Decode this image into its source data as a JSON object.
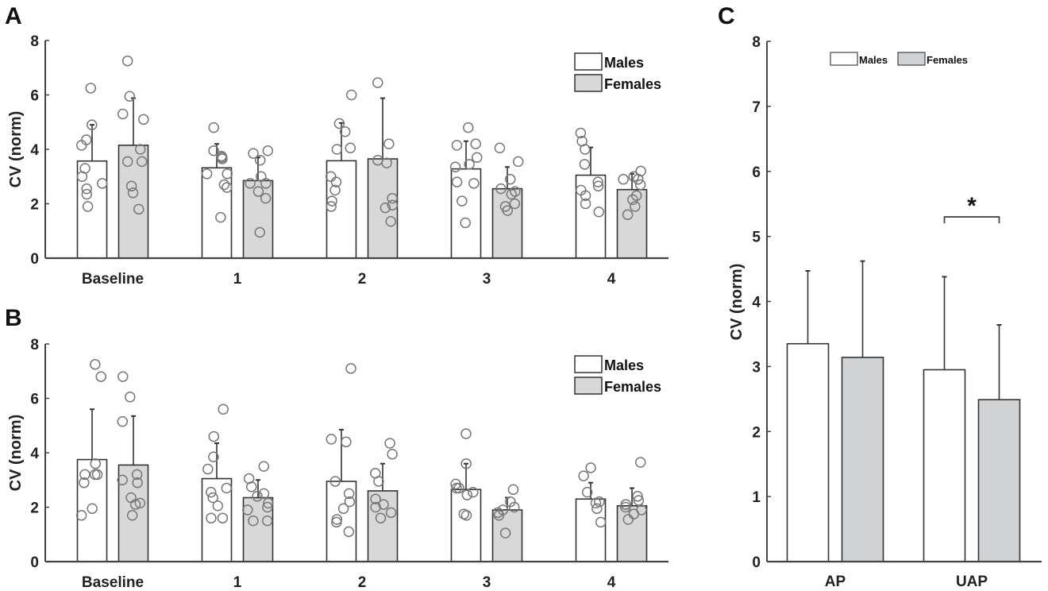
{
  "figure": {
    "colors": {
      "males": "#ffffff",
      "females": "#d8d8d8",
      "females_c": "#d0d3d6",
      "stroke": "#333333",
      "points": "#777777"
    }
  },
  "chart_data": [
    {
      "id": "A",
      "panel_label": "A",
      "type": "bar",
      "title": "",
      "xlabel": "",
      "ylabel": "CV (norm)",
      "ylim": [
        0,
        8
      ],
      "yticks": [
        0,
        2,
        4,
        6,
        8
      ],
      "grid": false,
      "legend": {
        "position": "top-right",
        "entries": [
          "Males",
          "Females"
        ]
      },
      "categories": [
        "Baseline",
        "1",
        "2",
        "3",
        "4"
      ],
      "series": [
        {
          "name": "Males",
          "values": [
            3.57,
            3.32,
            3.58,
            3.28,
            3.05
          ],
          "error_upper": [
            4.9,
            4.2,
            4.97,
            4.3,
            4.07
          ],
          "points": [
            [
              6.25,
              4.9,
              4.35,
              4.15,
              3.3,
              3.0,
              2.75,
              2.55,
              2.35,
              1.9
            ],
            [
              4.8,
              3.95,
              3.75,
              3.7,
              3.65,
              3.1,
              3.1,
              2.7,
              2.6,
              1.5
            ],
            [
              6.0,
              4.95,
              4.65,
              4.05,
              4.0,
              3.0,
              2.8,
              2.5,
              2.1,
              1.9
            ],
            [
              4.8,
              4.2,
              4.15,
              3.7,
              3.45,
              3.35,
              2.8,
              2.75,
              2.1,
              1.3
            ],
            [
              4.6,
              4.3,
              4.0,
              3.45,
              2.8,
              2.65,
              2.5,
              2.3,
              2.0,
              1.7
            ]
          ]
        },
        {
          "name": "Females",
          "values": [
            4.15,
            2.85,
            3.65,
            2.55,
            2.52
          ],
          "error_upper": [
            5.88,
            3.7,
            5.88,
            3.35,
            3.1
          ],
          "points": [
            [
              7.25,
              5.95,
              5.3,
              5.1,
              4.0,
              3.55,
              3.55,
              2.65,
              2.4,
              1.8
            ],
            [
              3.95,
              3.85,
              3.6,
              3.0,
              2.75,
              2.75,
              2.45,
              2.2,
              0.95
            ],
            [
              6.45,
              4.2,
              3.6,
              3.5,
              2.2,
              1.95,
              1.85,
              1.35
            ],
            [
              4.05,
              3.55,
              2.9,
              2.55,
              2.45,
              2.35,
              2.0,
              1.9,
              1.75
            ],
            [
              3.2,
              3.0,
              2.9,
              2.9,
              2.7,
              2.3,
              2.15,
              1.9,
              1.6
            ]
          ]
        }
      ]
    },
    {
      "id": "B",
      "panel_label": "B",
      "type": "bar",
      "title": "",
      "xlabel": "",
      "ylabel": "CV (norm)",
      "ylim": [
        0,
        8
      ],
      "yticks": [
        0,
        2,
        4,
        6,
        8
      ],
      "grid": false,
      "legend": {
        "position": "top-right",
        "entries": [
          "Males",
          "Females"
        ]
      },
      "categories": [
        "Baseline",
        "1",
        "2",
        "3",
        "4"
      ],
      "series": [
        {
          "name": "Males",
          "values": [
            3.75,
            3.05,
            2.95,
            2.65,
            2.3
          ],
          "error_upper": [
            5.6,
            4.35,
            4.85,
            3.6,
            2.9
          ],
          "points": [
            [
              7.25,
              6.8,
              3.6,
              3.2,
              3.2,
              3.2,
              2.9,
              1.95,
              1.7
            ],
            [
              5.6,
              4.6,
              3.85,
              3.4,
              2.7,
              2.55,
              2.35,
              2.05,
              1.6,
              1.6
            ],
            [
              7.1,
              4.5,
              4.4,
              2.95,
              2.5,
              2.2,
              1.95,
              1.55,
              1.45,
              1.1
            ],
            [
              4.7,
              3.6,
              2.85,
              2.7,
              2.7,
              2.55,
              2.45,
              1.75,
              1.7
            ],
            [
              3.45,
              3.15,
              2.55,
              2.2,
              2.15,
              1.95,
              1.45
            ]
          ]
        },
        {
          "name": "Females",
          "values": [
            3.55,
            2.35,
            2.6,
            1.9,
            2.05
          ],
          "error_upper": [
            5.35,
            3.0,
            3.6,
            2.35,
            2.7
          ],
          "points": [
            [
              6.8,
              6.05,
              5.15,
              3.2,
              3.0,
              2.9,
              2.35,
              2.15,
              2.1,
              1.7
            ],
            [
              3.5,
              3.05,
              2.75,
              2.5,
              2.4,
              2.15,
              2.0,
              1.9,
              1.5,
              1.5
            ],
            [
              4.35,
              3.95,
              3.25,
              2.95,
              2.3,
              2.1,
              2.0,
              1.8,
              1.6
            ],
            [
              2.65,
              2.2,
              2.0,
              1.9,
              1.8,
              1.7,
              1.05
            ],
            [
              3.65,
              2.4,
              2.25,
              2.1,
              2.0,
              1.9,
              1.75,
              1.55
            ]
          ]
        }
      ]
    },
    {
      "id": "C",
      "panel_label": "C",
      "type": "bar",
      "title": "",
      "xlabel": "",
      "ylabel": "CV (norm)",
      "ylim": [
        0,
        8
      ],
      "yticks": [
        0,
        1,
        2,
        3,
        4,
        5,
        6,
        7,
        8
      ],
      "grid": false,
      "legend": {
        "position": "top-center",
        "entries": [
          "Males",
          "Females"
        ]
      },
      "categories": [
        "AP",
        "UAP"
      ],
      "series": [
        {
          "name": "Males",
          "values": [
            3.35,
            2.95
          ],
          "error_upper": [
            4.47,
            4.38
          ]
        },
        {
          "name": "Females",
          "values": [
            3.14,
            2.49
          ],
          "error_upper": [
            4.62,
            3.64
          ]
        }
      ],
      "annotations": [
        {
          "type": "significance",
          "category": "UAP",
          "text": "*"
        }
      ]
    }
  ]
}
